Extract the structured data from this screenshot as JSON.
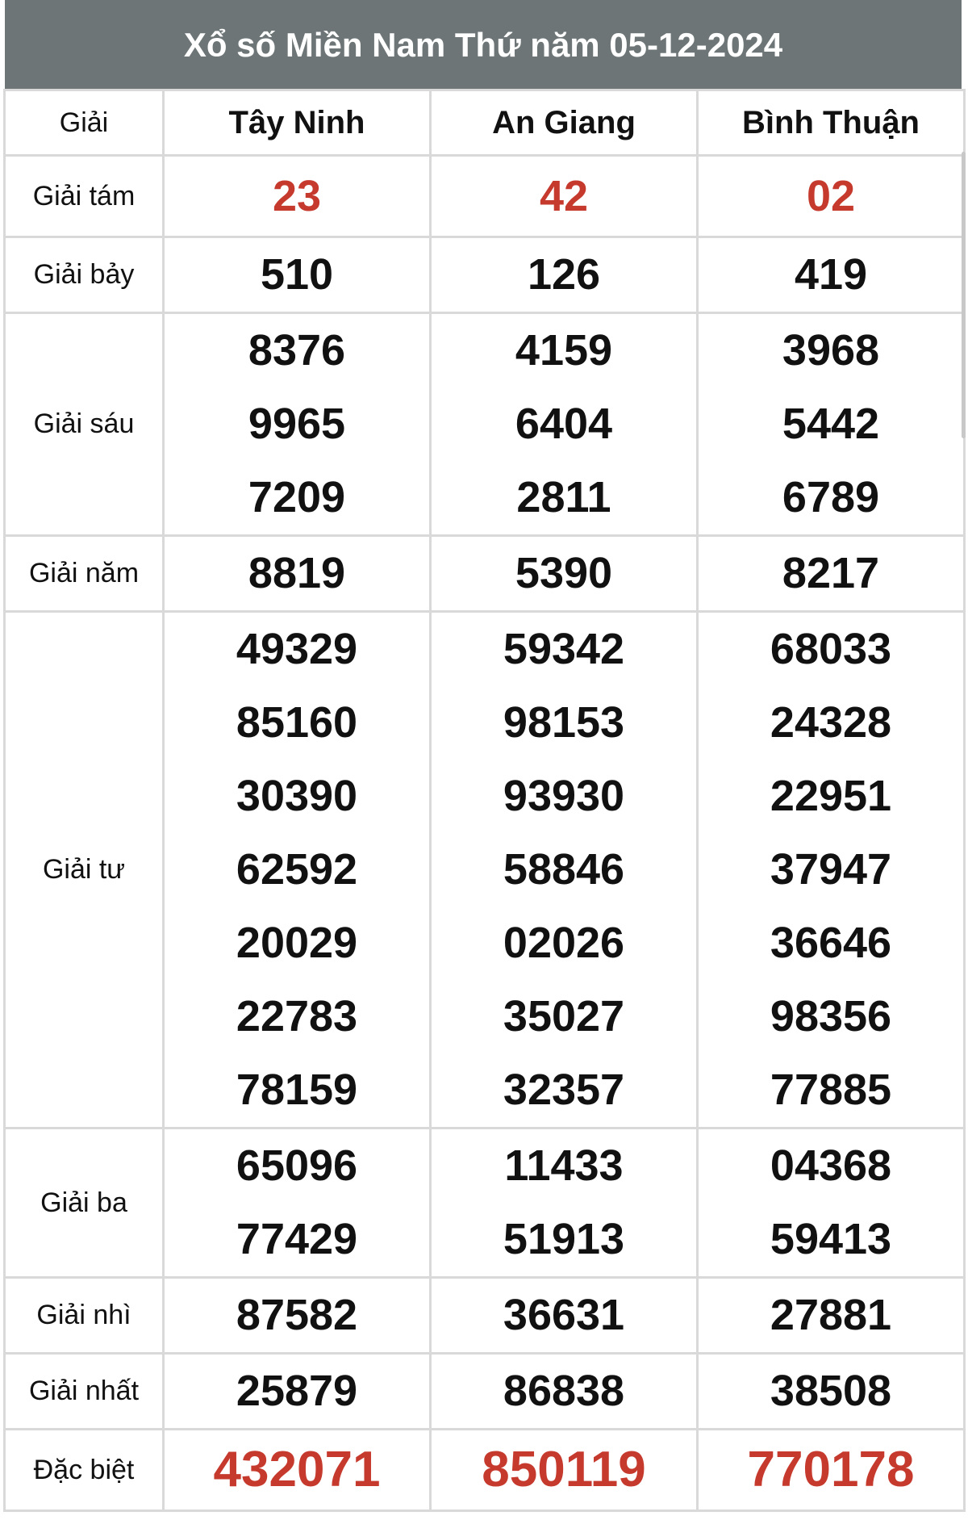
{
  "title": "Xổ số Miền Nam Thứ năm 05-12-2024",
  "colors": {
    "header_bg": "#6d7576",
    "highlight": "#c63a2e",
    "border": "#d9d9d9"
  },
  "columns": [
    "Giải",
    "Tây Ninh",
    "An Giang",
    "Bình Thuận"
  ],
  "rows": [
    {
      "label": "Giải tám",
      "highlight": true,
      "values": [
        [
          "23"
        ],
        [
          "42"
        ],
        [
          "02"
        ]
      ]
    },
    {
      "label": "Giải bảy",
      "values": [
        [
          "510"
        ],
        [
          "126"
        ],
        [
          "419"
        ]
      ]
    },
    {
      "label": "Giải sáu",
      "values": [
        [
          "8376",
          "9965",
          "7209"
        ],
        [
          "4159",
          "6404",
          "2811"
        ],
        [
          "3968",
          "5442",
          "6789"
        ]
      ]
    },
    {
      "label": "Giải năm",
      "values": [
        [
          "8819"
        ],
        [
          "5390"
        ],
        [
          "8217"
        ]
      ]
    },
    {
      "label": "Giải tư",
      "values": [
        [
          "49329",
          "85160",
          "30390",
          "62592",
          "20029",
          "22783",
          "78159"
        ],
        [
          "59342",
          "98153",
          "93930",
          "58846",
          "02026",
          "35027",
          "32357"
        ],
        [
          "68033",
          "24328",
          "22951",
          "37947",
          "36646",
          "98356",
          "77885"
        ]
      ]
    },
    {
      "label": "Giải ba",
      "values": [
        [
          "65096",
          "77429"
        ],
        [
          "11433",
          "51913"
        ],
        [
          "04368",
          "59413"
        ]
      ]
    },
    {
      "label": "Giải nhì",
      "values": [
        [
          "87582"
        ],
        [
          "36631"
        ],
        [
          "27881"
        ]
      ]
    },
    {
      "label": "Giải nhất",
      "values": [
        [
          "25879"
        ],
        [
          "86838"
        ],
        [
          "38508"
        ]
      ]
    },
    {
      "label": "Đặc biệt",
      "highlight": true,
      "special": true,
      "values": [
        [
          "432071"
        ],
        [
          "850119"
        ],
        [
          "770178"
        ]
      ]
    }
  ]
}
